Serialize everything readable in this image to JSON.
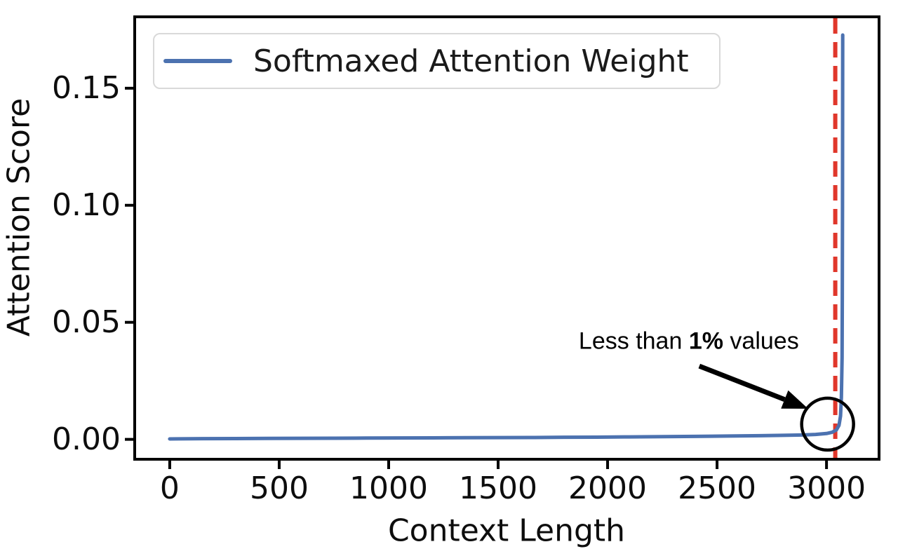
{
  "chart_data": {
    "type": "line",
    "title": "",
    "xlabel": "Context Length",
    "ylabel": "Attention Score",
    "xlim": [
      -160,
      3240
    ],
    "ylim": [
      -0.0085,
      0.1805
    ],
    "grid": false,
    "xticks": {
      "values": [
        0,
        500,
        1000,
        1500,
        2000,
        2500,
        3000
      ],
      "labels": [
        "0",
        "500",
        "1000",
        "1500",
        "2000",
        "2500",
        "3000"
      ]
    },
    "yticks": {
      "values": [
        0.0,
        0.05,
        0.1,
        0.15
      ],
      "labels": [
        "0.00",
        "0.05",
        "0.10",
        "0.15"
      ]
    },
    "legend": {
      "position": "upper-left",
      "entries": [
        {
          "label": "Softmaxed Attention Weight",
          "color": "#4C72B0"
        }
      ]
    },
    "series": [
      {
        "name": "Softmaxed Attention Weight",
        "color": "#4C72B0",
        "line_width": 5,
        "points": [
          [
            0,
            0.0002
          ],
          [
            150,
            0.0003
          ],
          [
            300,
            0.00035
          ],
          [
            450,
            0.0004
          ],
          [
            600,
            0.00045
          ],
          [
            750,
            0.0005
          ],
          [
            900,
            0.00055
          ],
          [
            1050,
            0.0006
          ],
          [
            1200,
            0.00065
          ],
          [
            1350,
            0.0007
          ],
          [
            1500,
            0.00075
          ],
          [
            1650,
            0.0008
          ],
          [
            1800,
            0.0009
          ],
          [
            1950,
            0.00095
          ],
          [
            2100,
            0.00105
          ],
          [
            2250,
            0.00115
          ],
          [
            2400,
            0.00125
          ],
          [
            2550,
            0.0014
          ],
          [
            2700,
            0.00155
          ],
          [
            2800,
            0.0017
          ],
          [
            2900,
            0.0019
          ],
          [
            2950,
            0.0021
          ],
          [
            3000,
            0.0025
          ],
          [
            3025,
            0.003
          ],
          [
            3045,
            0.004
          ],
          [
            3057,
            0.006
          ],
          [
            3064,
            0.01
          ],
          [
            3068,
            0.018
          ],
          [
            3071,
            0.035
          ],
          [
            3072,
            0.06
          ],
          [
            3073,
            0.1
          ],
          [
            3074,
            0.1727
          ]
        ]
      }
    ],
    "vline": {
      "x": 3040,
      "color": "#E0372B",
      "style": "dashed",
      "width": 6,
      "dash": "22 12"
    },
    "annotation": {
      "text_prefix": "Less than ",
      "text_bold": "1%",
      "text_suffix": " values",
      "x": 2371,
      "y": 0.0418,
      "arrow": {
        "from_x": 2419,
        "from_y": 0.0313,
        "to_x": 2916,
        "to_y": 0.0131,
        "color": "#000000"
      },
      "circle": {
        "x": 3005,
        "y": 0.0065,
        "radius_px": 37,
        "color": "#000000"
      }
    },
    "axis_color": "#000000"
  }
}
